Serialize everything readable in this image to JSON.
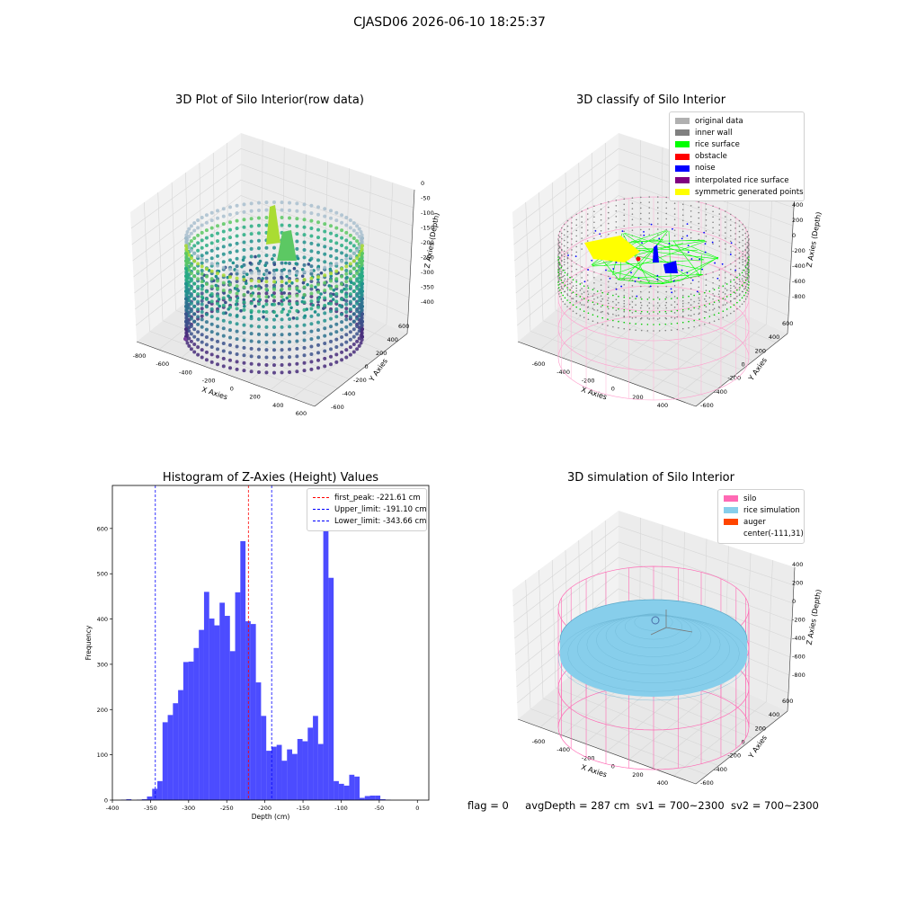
{
  "figure": {
    "suptitle": "CJASD06 2026-06-10 18:25:37",
    "footer": {
      "flag": "flag = 0",
      "avg_depth": "avgDepth = 287 cm",
      "sv1": "sv1 = 700~2300",
      "sv2": "sv2 = 700~2300"
    }
  },
  "panels": {
    "raw": {
      "title": "3D Plot of Silo Interior(row data)",
      "xlabel": "X Axies",
      "ylabel": "Y Axies",
      "zlabel": "Z Axies (Depth)",
      "xticks": [
        "-800",
        "-600",
        "-400",
        "-200",
        "0",
        "200",
        "400",
        "600"
      ],
      "yticks": [
        "600",
        "400",
        "200",
        "0",
        "-200",
        "-400",
        "-600"
      ],
      "zticks": [
        "0",
        "-50",
        "-100",
        "-150",
        "-200",
        "-250",
        "-300",
        "-350",
        "-400"
      ]
    },
    "classify": {
      "title": "3D classify of Silo Interior",
      "xlabel": "X Axies",
      "ylabel": "Y Axies",
      "zlabel": "Z Axies (Depth)",
      "xticks": [
        "-600",
        "-400",
        "-200",
        "0",
        "200",
        "400"
      ],
      "yticks": [
        "600",
        "400",
        "200",
        "0",
        "-200",
        "-400",
        "-600"
      ],
      "zticks": [
        "400",
        "200",
        "0",
        "-200",
        "-400",
        "-600",
        "-800"
      ],
      "legend": [
        {
          "label": "original data",
          "color": "#b0b0b0"
        },
        {
          "label": "inner wall",
          "color": "#808080"
        },
        {
          "label": "rice surface",
          "color": "#00ff00"
        },
        {
          "label": "obstacle",
          "color": "#ff0000"
        },
        {
          "label": "noise",
          "color": "#0000ff"
        },
        {
          "label": "interpolated rice surface",
          "color": "#800080"
        },
        {
          "label": "symmetric generated points",
          "color": "#ffff00"
        }
      ]
    },
    "simulation": {
      "title": "3D simulation of Silo Interior",
      "xlabel": "X Axies",
      "ylabel": "Y Axies",
      "zlabel": "Z Axies (Depth)",
      "xticks": [
        "-600",
        "-400",
        "-200",
        "0",
        "200",
        "400"
      ],
      "yticks": [
        "600",
        "400",
        "200",
        "0",
        "-200",
        "-400",
        "-600"
      ],
      "zticks": [
        "400",
        "200",
        "0",
        "-200",
        "-400",
        "-600",
        "-800"
      ],
      "legend": [
        {
          "label": "silo",
          "color": "#ff69b4"
        },
        {
          "label": "rice simulation",
          "color": "#87ceeb"
        },
        {
          "label": "auger",
          "color": "#ff4500"
        },
        {
          "label": "center(-111,31)",
          "color": "#ffffff"
        }
      ]
    }
  },
  "chart_data": {
    "type": "bar",
    "title": "Histogram of Z-Axies (Height) Values",
    "xlabel": "Depth (cm)",
    "ylabel": "Frequency",
    "xlim": [
      -400,
      15
    ],
    "ylim": [
      0,
      695
    ],
    "xticks": [
      -400,
      -350,
      -300,
      -250,
      -200,
      -150,
      -100,
      -50,
      0
    ],
    "yticks": [
      0,
      100,
      200,
      300,
      400,
      500,
      600
    ],
    "bar_color": "#0000ff",
    "bin_width": 6.8,
    "bin_starts": [
      -388.6,
      -381.8,
      -375.0,
      -368.2,
      -361.4,
      -354.6,
      -347.8,
      -341.0,
      -334.2,
      -327.4,
      -320.6,
      -313.8,
      -307.0,
      -300.2,
      -293.4,
      -286.6,
      -279.8,
      -273.0,
      -266.2,
      -259.4,
      -252.6,
      -245.8,
      -239.0,
      -232.2,
      -225.4,
      -218.6,
      -211.8,
      -205.0,
      -198.2,
      -191.4,
      -184.6,
      -177.8,
      -171.0,
      -164.2,
      -157.4,
      -150.6,
      -143.8,
      -137.0,
      -130.2,
      -123.4,
      -116.6,
      -109.8,
      -103.0,
      -96.2,
      -89.4,
      -82.6,
      -75.8,
      -69.0,
      -62.2,
      -55.4,
      -48.6,
      -41.8,
      -35.0,
      -28.2,
      -21.4,
      -14.6
    ],
    "values": [
      1,
      2,
      0,
      1,
      2,
      8,
      25,
      42,
      172,
      188,
      214,
      243,
      305,
      306,
      336,
      376,
      460,
      401,
      386,
      436,
      407,
      329,
      459,
      572,
      395,
      389,
      260,
      186,
      109,
      118,
      122,
      87,
      112,
      102,
      135,
      130,
      160,
      186,
      124,
      659,
      491,
      42,
      36,
      32,
      56,
      52,
      5,
      9,
      10,
      10,
      2,
      1,
      0,
      0,
      0,
      0
    ],
    "vlines": [
      {
        "label": "first_peak: -221.61 cm",
        "x": -221.61,
        "color": "#ff0000"
      },
      {
        "label": "Upper_limit: -191.10 cm",
        "x": -191.1,
        "color": "#0000ff"
      },
      {
        "label": "Lower_limit: -343.66 cm",
        "x": -343.66,
        "color": "#0000ff"
      }
    ],
    "legend_position": "top-right"
  }
}
